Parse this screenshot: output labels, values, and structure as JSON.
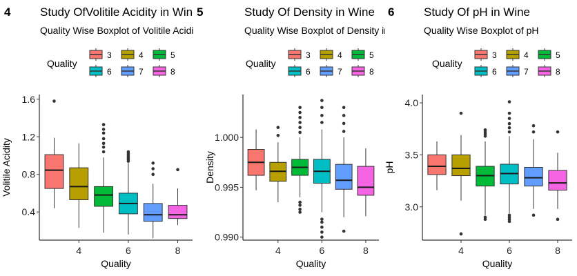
{
  "panels": [
    {
      "tag": "4",
      "title": "Study OfVolitile Acidity  in Wine",
      "subtitle": "Quality Wise Boxplot of Volitile Acidity in Wine",
      "legend_title": "Quality",
      "legend_entries": [
        "3",
        "4",
        "5",
        "6",
        "7",
        "8"
      ]
    },
    {
      "tag": "5",
      "title": "Study Of  Density in Wine",
      "subtitle": "Quality Wise Boxplot of Density in Wine",
      "legend_title": "Quality",
      "legend_entries": [
        "3",
        "4",
        "5",
        "6",
        "7",
        "8"
      ]
    },
    {
      "tag": "6",
      "title": "Study Of  pH in Wine",
      "subtitle": "Quality Wise Boxplot of pH",
      "legend_title": "Quality",
      "legend_entries": [
        "3",
        "4",
        "5",
        "6",
        "7",
        "8"
      ]
    }
  ],
  "colors": [
    "#F8766D",
    "#B79F00",
    "#00BA38",
    "#00BFC4",
    "#619CFF",
    "#F564E3"
  ],
  "chart_data": [
    {
      "type": "boxplot",
      "xlabel": "Quality",
      "ylabel": "Volitile Acidity",
      "ylim": [
        0.1,
        1.65
      ],
      "y_ticks": [
        0.4,
        0.8,
        1.2,
        1.6
      ],
      "y_tick_labels": [
        "0.4",
        "0.8",
        "1.2",
        "1.6"
      ],
      "x_ticks": [
        4,
        6,
        8
      ],
      "x_tick_labels": [
        "4",
        "6",
        "8"
      ],
      "xlim": [
        2.4,
        8.6
      ],
      "categories": [
        3,
        4,
        5,
        6,
        7,
        8
      ],
      "boxes": [
        {
          "q1": 0.65,
          "median": 0.845,
          "q3": 1.01,
          "low": 0.44,
          "high": 1.19,
          "outliers": [
            1.58
          ]
        },
        {
          "q1": 0.53,
          "median": 0.67,
          "q3": 0.87,
          "low": 0.23,
          "high": 1.13,
          "outliers": []
        },
        {
          "q1": 0.46,
          "median": 0.58,
          "q3": 0.67,
          "low": 0.18,
          "high": 0.98,
          "outliers": [
            1.04,
            1.09,
            1.13,
            1.18,
            1.24,
            1.28,
            1.33
          ]
        },
        {
          "q1": 0.38,
          "median": 0.49,
          "q3": 0.6,
          "low": 0.16,
          "high": 0.92,
          "outliers": [
            0.94,
            0.96,
            0.98,
            1.0,
            1.02,
            1.04
          ]
        },
        {
          "q1": 0.3,
          "median": 0.37,
          "q3": 0.49,
          "low": 0.12,
          "high": 0.7,
          "outliers": [
            0.8,
            0.86,
            0.92
          ]
        },
        {
          "q1": 0.33,
          "median": 0.37,
          "q3": 0.47,
          "low": 0.26,
          "high": 0.65,
          "outliers": [
            0.85
          ]
        }
      ]
    },
    {
      "type": "boxplot",
      "xlabel": "Quality",
      "ylabel": "Density",
      "ylim": [
        0.9897,
        1.0043
      ],
      "y_ticks": [
        0.99,
        0.995,
        1.0
      ],
      "y_tick_labels": [
        "0.990",
        "0.995",
        "1.000"
      ],
      "x_ticks": [
        4,
        6,
        8
      ],
      "x_tick_labels": [
        "4",
        "6",
        "8"
      ],
      "xlim": [
        2.4,
        8.6
      ],
      "categories": [
        3,
        4,
        5,
        6,
        7,
        8
      ],
      "boxes": [
        {
          "q1": 0.9962,
          "median": 0.9975,
          "q3": 0.9988,
          "low": 0.9947,
          "high": 1.0008,
          "outliers": []
        },
        {
          "q1": 0.9956,
          "median": 0.9966,
          "q3": 0.9975,
          "low": 0.9935,
          "high": 0.9995,
          "outliers": [
            1.0002,
            1.001
          ]
        },
        {
          "q1": 0.9962,
          "median": 0.997,
          "q3": 0.9978,
          "low": 0.994,
          "high": 1.0,
          "outliers": [
            0.9925,
            0.9928,
            0.9932,
            0.9935,
            1.0005,
            1.001,
            1.0015,
            1.002,
            1.0025,
            1.003
          ]
        },
        {
          "q1": 0.9954,
          "median": 0.9966,
          "q3": 0.9978,
          "low": 0.9925,
          "high": 1.0008,
          "outliers": [
            0.99,
            0.9905,
            0.991,
            0.9915,
            0.9918,
            1.0015,
            1.0022,
            1.003,
            1.0037
          ]
        },
        {
          "q1": 0.9948,
          "median": 0.9957,
          "q3": 0.9973,
          "low": 0.992,
          "high": 1.0,
          "outliers": [
            0.9906,
            1.0006,
            1.0014,
            1.0022,
            1.003
          ]
        },
        {
          "q1": 0.9942,
          "median": 0.995,
          "q3": 0.9971,
          "low": 0.9921,
          "high": 0.9989,
          "outliers": []
        }
      ]
    },
    {
      "type": "boxplot",
      "xlabel": "Quality",
      "ylabel": "pH",
      "ylim": [
        2.68,
        4.08
      ],
      "y_ticks": [
        3.0,
        3.5,
        4.0
      ],
      "y_tick_labels": [
        "3.0",
        "3.5",
        "4.0"
      ],
      "x_ticks": [
        4,
        6,
        8
      ],
      "x_tick_labels": [
        "4",
        "6",
        "8"
      ],
      "xlim": [
        2.4,
        8.6
      ],
      "categories": [
        3,
        4,
        5,
        6,
        7,
        8
      ],
      "boxes": [
        {
          "q1": 3.31,
          "median": 3.39,
          "q3": 3.5,
          "low": 3.16,
          "high": 3.63,
          "outliers": []
        },
        {
          "q1": 3.3,
          "median": 3.37,
          "q3": 3.5,
          "low": 3.06,
          "high": 3.69,
          "outliers": [
            3.9,
            2.74
          ]
        },
        {
          "q1": 3.2,
          "median": 3.3,
          "q3": 3.39,
          "low": 2.92,
          "high": 3.63,
          "outliers": [
            2.88,
            2.9,
            3.68,
            3.7,
            3.72,
            3.74
          ]
        },
        {
          "q1": 3.22,
          "median": 3.32,
          "q3": 3.41,
          "low": 2.94,
          "high": 3.68,
          "outliers": [
            2.86,
            2.88,
            2.9,
            2.92,
            3.72,
            3.76,
            3.8,
            3.85,
            3.9,
            4.01
          ]
        },
        {
          "q1": 3.2,
          "median": 3.28,
          "q3": 3.38,
          "low": 2.98,
          "high": 3.65,
          "outliers": [
            2.92,
            3.72,
            3.78
          ]
        },
        {
          "q1": 3.16,
          "median": 3.23,
          "q3": 3.35,
          "low": 2.98,
          "high": 3.52,
          "outliers": [
            2.88,
            3.72
          ]
        }
      ]
    }
  ]
}
